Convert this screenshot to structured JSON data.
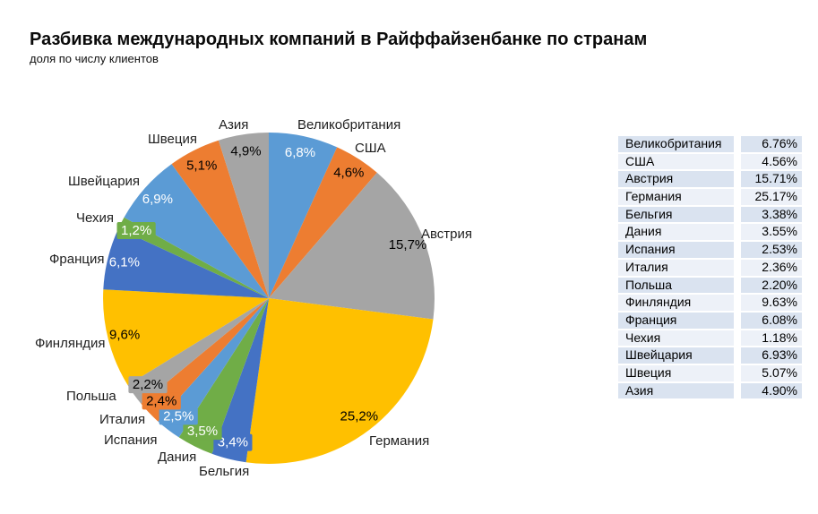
{
  "page": {
    "title": "Разбивка международных компаний в Райффайзенбанке по странам",
    "subtitle": "доля по числу клиентов"
  },
  "chart_data": {
    "type": "pie",
    "title": "Разбивка международных компаний в Райффайзенбанке по странам",
    "subtitle": "доля по числу клиентов",
    "start_angle_deg": 0,
    "direction": "clockwise",
    "legend_position": "none",
    "categories": [
      "Великобритания",
      "США",
      "Австрия",
      "Германия",
      "Бельгия",
      "Дания",
      "Испания",
      "Италия",
      "Польша",
      "Финляндия",
      "Франция",
      "Чехия",
      "Швейцария",
      "Швеция",
      "Азия"
    ],
    "values": [
      6.76,
      4.56,
      15.71,
      25.17,
      3.38,
      3.55,
      2.53,
      2.36,
      2.2,
      9.63,
      6.08,
      1.18,
      6.93,
      5.07,
      4.9
    ],
    "slice_labels": [
      "6,8%",
      "4,6%",
      "15,7%",
      "25,2%",
      "3,4%",
      "3,5%",
      "2,5%",
      "2,4%",
      "2,2%",
      "9,6%",
      "6,1%",
      "1,2%",
      "6,9%",
      "5,1%",
      "4,9%"
    ],
    "colors": [
      "#5B9BD5",
      "#ED7D31",
      "#A5A5A5",
      "#FFC000",
      "#4472C4",
      "#70AD47",
      "#5B9BD5",
      "#ED7D31",
      "#A5A5A5",
      "#FFC000",
      "#4472C4",
      "#70AD47",
      "#5B9BD5",
      "#ED7D31",
      "#A5A5A5"
    ],
    "slice_label_text_colors": [
      "#FFFFFF",
      "#000000",
      "#000000",
      "#000000",
      "#FFFFFF",
      "#FFFFFF",
      "#FFFFFF",
      "#000000",
      "#000000",
      "#000000",
      "#FFFFFF",
      "#FFFFFF",
      "#FFFFFF",
      "#000000",
      "#000000"
    ]
  },
  "table": {
    "rows": [
      {
        "country": "Великобритания",
        "value": "6.76%"
      },
      {
        "country": "США",
        "value": "4.56%"
      },
      {
        "country": "Австрия",
        "value": "15.71%"
      },
      {
        "country": "Германия",
        "value": "25.17%"
      },
      {
        "country": "Бельгия",
        "value": "3.38%"
      },
      {
        "country": "Дания",
        "value": "3.55%"
      },
      {
        "country": "Испания",
        "value": "2.53%"
      },
      {
        "country": "Италия",
        "value": "2.36%"
      },
      {
        "country": "Польша",
        "value": "2.20%"
      },
      {
        "country": "Финляндия",
        "value": "9.63%"
      },
      {
        "country": "Франция",
        "value": "6.08%"
      },
      {
        "country": "Чехия",
        "value": "1.18%"
      },
      {
        "country": "Швейцария",
        "value": "6.93%"
      },
      {
        "country": "Швеция",
        "value": "5.07%"
      },
      {
        "country": "Азия",
        "value": "4.90%"
      }
    ],
    "band_colors": {
      "odd": "#dae3f0",
      "even": "#edf1f8"
    }
  }
}
